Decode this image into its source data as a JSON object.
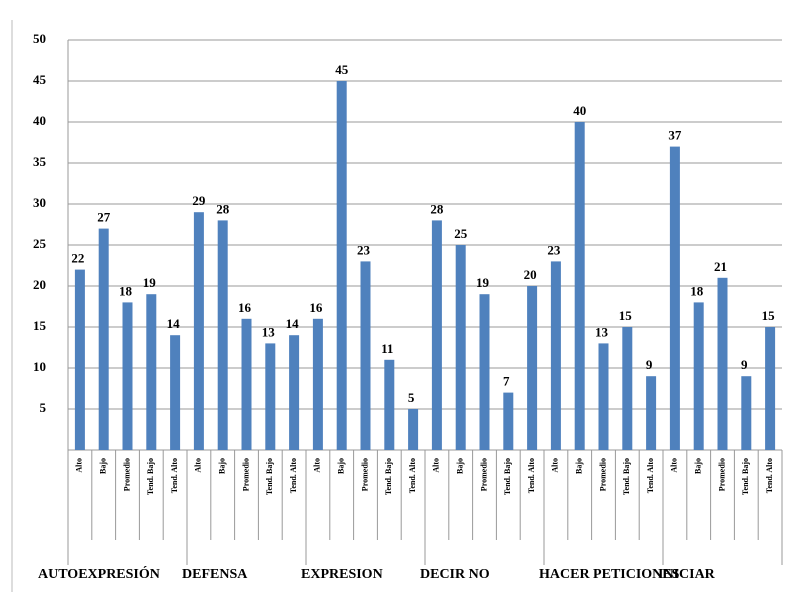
{
  "chart_data": {
    "type": "bar",
    "groups": [
      "AUTOEXPRESIÓN",
      "DEFENSA",
      "EXPRESION",
      "DECIR NO",
      "HACER PETICIONES",
      "INICIAR"
    ],
    "categories": [
      "Alto",
      "Bajo",
      "Promedio",
      "Tend. Bajo",
      "Tend. Alto",
      "Alto",
      "Bajo",
      "Promedio",
      "Tend. Bajo",
      "Tend. Alto",
      "Alto",
      "Bajo",
      "Promedio",
      "Tend. Bajo",
      "Tend. Alto",
      "Alto",
      "Bajo",
      "Promedio",
      "Tend. Bajo",
      "Tend. Alto",
      "Alto",
      "Bajo",
      "Promedio",
      "Tend. Bajo",
      "Tend. Alto",
      "Alto",
      "Bajo",
      "Promedio",
      "Tend. Bajo",
      "Tend. Alto"
    ],
    "values": [
      22,
      27,
      18,
      19,
      14,
      29,
      28,
      16,
      13,
      14,
      16,
      45,
      23,
      11,
      5,
      28,
      25,
      19,
      7,
      20,
      23,
      40,
      13,
      15,
      9,
      37,
      18,
      21,
      9,
      15
    ],
    "color": "#4f81bd",
    "ylim": [
      0,
      50
    ],
    "yticks": [
      5,
      10,
      15,
      20,
      25,
      30,
      35,
      40,
      45,
      50
    ],
    "grid": true
  }
}
